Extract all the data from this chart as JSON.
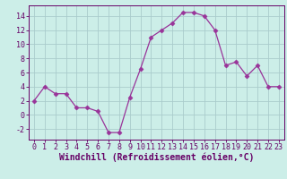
{
  "x": [
    0,
    1,
    2,
    3,
    4,
    5,
    6,
    7,
    8,
    9,
    10,
    11,
    12,
    13,
    14,
    15,
    16,
    17,
    18,
    19,
    20,
    21,
    22,
    23
  ],
  "y": [
    2,
    4,
    3,
    3,
    1,
    1,
    0.5,
    -2.5,
    -2.5,
    2.5,
    6.5,
    11,
    12,
    13,
    14.5,
    14.5,
    14,
    12,
    7,
    7.5,
    5.5,
    7,
    4,
    4
  ],
  "line_color": "#993399",
  "marker": "D",
  "marker_size": 2.5,
  "bg_color": "#cceee8",
  "grid_color": "#aacccc",
  "xlabel": "Windchill (Refroidissement éolien,°C)",
  "xlim": [
    -0.5,
    23.5
  ],
  "ylim": [
    -3.5,
    15.5
  ],
  "xticks": [
    0,
    1,
    2,
    3,
    4,
    5,
    6,
    7,
    8,
    9,
    10,
    11,
    12,
    13,
    14,
    15,
    16,
    17,
    18,
    19,
    20,
    21,
    22,
    23
  ],
  "yticks": [
    -2,
    0,
    2,
    4,
    6,
    8,
    10,
    12,
    14
  ],
  "tick_label_size": 6.0,
  "xlabel_size": 7.0,
  "axis_color": "#660066",
  "line_width": 0.9
}
